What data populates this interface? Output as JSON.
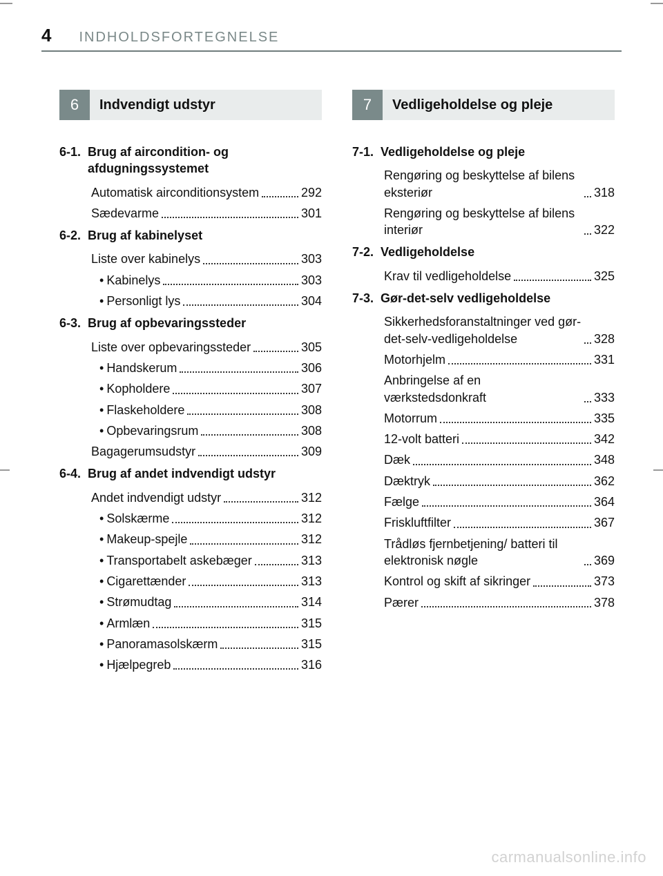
{
  "page_number": "4",
  "header_title": "INDHOLDSFORTEGNELSE",
  "watermark": "carmanualsonline.info",
  "colors": {
    "accent": "#7a8a8a",
    "section_bg": "#e9ecec",
    "rule": "#6f7c7c",
    "text": "#111111",
    "muted": "#7a8888",
    "watermark": "rgba(0,0,0,0.18)"
  },
  "left": {
    "section_num": "6",
    "section_title": "Indvendigt udstyr",
    "groups": [
      {
        "num": "6-1.",
        "title": "Brug af aircondition- og afdugningssystemet",
        "items": [
          {
            "label": "Automatisk airconditionsystem",
            "page": "292"
          },
          {
            "label": "Sædevarme",
            "page": "301"
          }
        ]
      },
      {
        "num": "6-2.",
        "title": "Brug af kabinelyset",
        "items": [
          {
            "label": "Liste over kabinelys",
            "page": "303"
          },
          {
            "label": "Kabinelys",
            "page": "303",
            "bullet": true
          },
          {
            "label": "Personligt lys",
            "page": "304",
            "bullet": true
          }
        ]
      },
      {
        "num": "6-3.",
        "title": "Brug af opbevaringssteder",
        "items": [
          {
            "label": "Liste over opbevaringssteder",
            "page": "305"
          },
          {
            "label": "Handskerum",
            "page": "306",
            "bullet": true
          },
          {
            "label": "Kopholdere",
            "page": "307",
            "bullet": true
          },
          {
            "label": "Flaskeholdere",
            "page": "308",
            "bullet": true
          },
          {
            "label": "Opbevaringsrum",
            "page": "308",
            "bullet": true
          },
          {
            "label": "Bagagerumsudstyr",
            "page": "309"
          }
        ]
      },
      {
        "num": "6-4.",
        "title": "Brug af andet indvendigt udstyr",
        "items": [
          {
            "label": "Andet indvendigt udstyr",
            "page": "312"
          },
          {
            "label": "Solskærme",
            "page": "312",
            "bullet": true
          },
          {
            "label": "Makeup-spejle",
            "page": "312",
            "bullet": true
          },
          {
            "label": "Transportabelt askebæger",
            "page": "313",
            "bullet": true
          },
          {
            "label": "Cigarettænder",
            "page": "313",
            "bullet": true
          },
          {
            "label": "Strømudtag",
            "page": "314",
            "bullet": true
          },
          {
            "label": "Armlæn",
            "page": "315",
            "bullet": true
          },
          {
            "label": "Panoramasolskærm",
            "page": "315",
            "bullet": true
          },
          {
            "label": "Hjælpegreb",
            "page": "316",
            "bullet": true
          }
        ]
      }
    ]
  },
  "right": {
    "section_num": "7",
    "section_title": "Vedligeholdelse og pleje",
    "groups": [
      {
        "num": "7-1.",
        "title": "Vedligeholdelse og pleje",
        "items": [
          {
            "label": "Rengøring og beskyttelse af bilens eksteriør",
            "page": "318"
          },
          {
            "label": "Rengøring og beskyttelse af bilens interiør",
            "page": "322"
          }
        ]
      },
      {
        "num": "7-2.",
        "title": "Vedligeholdelse",
        "items": [
          {
            "label": "Krav til vedligeholdelse",
            "page": "325"
          }
        ]
      },
      {
        "num": "7-3.",
        "title": "Gør-det-selv vedligeholdelse",
        "items": [
          {
            "label": "Sikkerhedsforanstaltninger ved gør-det-selv-vedligeholdelse",
            "page": "328"
          },
          {
            "label": "Motorhjelm",
            "page": "331"
          },
          {
            "label": "Anbringelse af en værkstedsdonkraft",
            "page": "333"
          },
          {
            "label": "Motorrum",
            "page": "335"
          },
          {
            "label": "12-volt batteri",
            "page": "342"
          },
          {
            "label": "Dæk",
            "page": "348"
          },
          {
            "label": "Dæktryk",
            "page": "362"
          },
          {
            "label": "Fælge",
            "page": "364"
          },
          {
            "label": "Friskluftfilter",
            "page": "367"
          },
          {
            "label": "Trådløs fjernbetjening/ batteri til elektronisk nøgle",
            "page": "369"
          },
          {
            "label": "Kontrol og skift af sikringer",
            "page": "373"
          },
          {
            "label": "Pærer",
            "page": "378"
          }
        ]
      }
    ]
  }
}
